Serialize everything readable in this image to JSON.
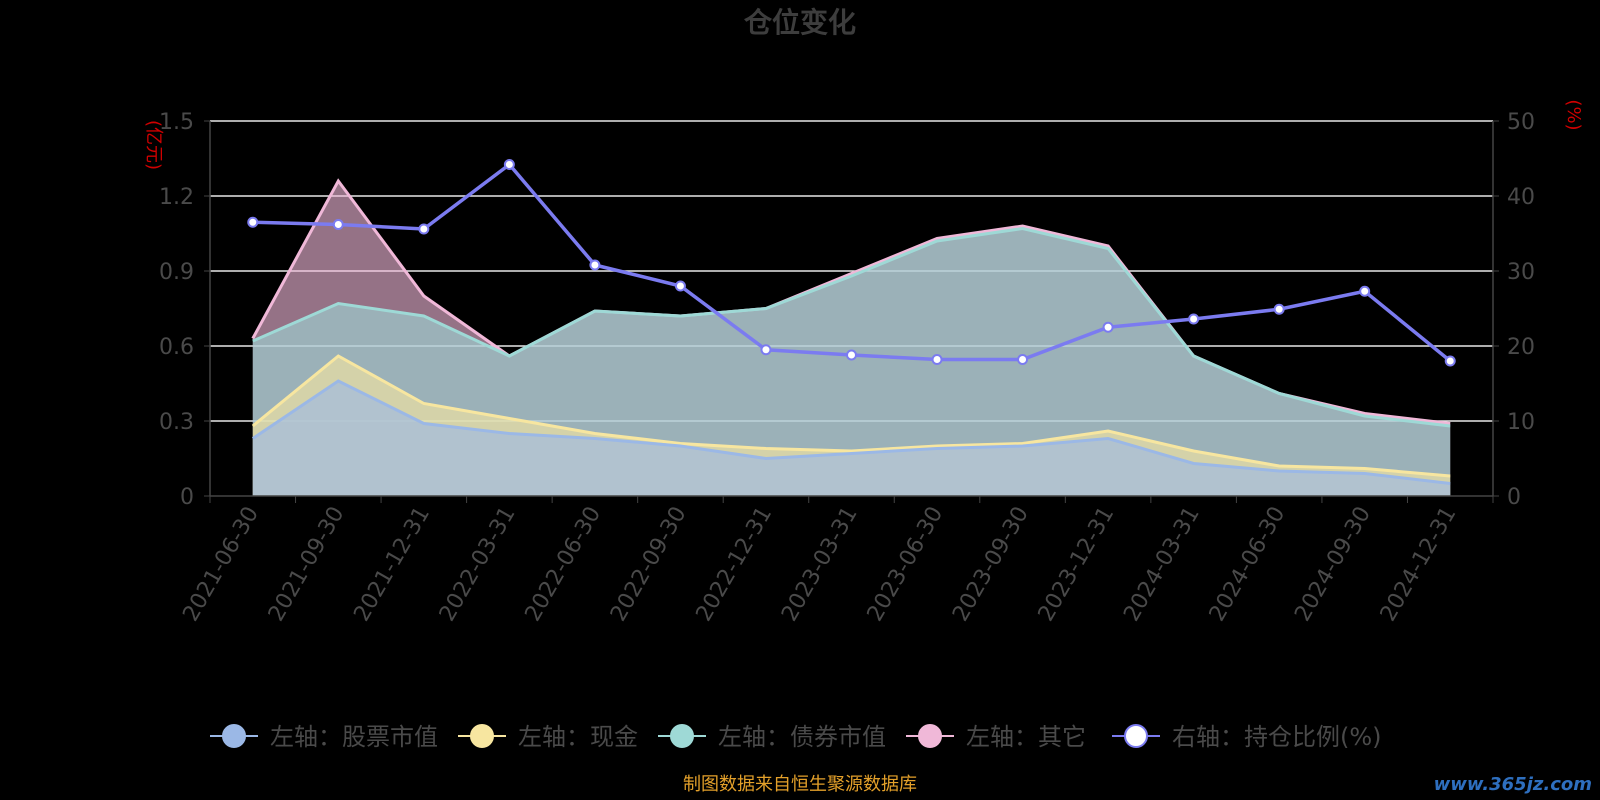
{
  "chart_data": {
    "type": "area",
    "title": "仓位变化",
    "left_axis_unit": "(亿元)",
    "right_axis_unit": "(%)",
    "left_ylim": [
      0,
      1.5
    ],
    "left_yticks": [
      "0",
      "0.3",
      "0.6",
      "0.9",
      "1.2",
      "1.5"
    ],
    "right_ylim": [
      0,
      50
    ],
    "right_yticks": [
      "0",
      "10",
      "20",
      "30",
      "40",
      "50"
    ],
    "grid": true,
    "legend_position": "bottom",
    "categories": [
      "2021-06-30",
      "2021-09-30",
      "2021-12-31",
      "2022-03-31",
      "2022-06-30",
      "2022-09-30",
      "2022-12-31",
      "2023-03-31",
      "2023-06-30",
      "2023-09-30",
      "2023-12-31",
      "2024-03-31",
      "2024-06-30",
      "2024-09-30",
      "2024-12-31"
    ],
    "stacked_series": [
      {
        "name": "左轴：股票市值",
        "axis": "left",
        "color": "#9bb8e6",
        "values": [
          0.23,
          0.46,
          0.29,
          0.25,
          0.23,
          0.2,
          0.15,
          0.17,
          0.19,
          0.2,
          0.23,
          0.13,
          0.1,
          0.09,
          0.05
        ]
      },
      {
        "name": "左轴：现金",
        "axis": "left",
        "color": "#f7e6a0",
        "values": [
          0.28,
          0.56,
          0.37,
          0.31,
          0.25,
          0.21,
          0.19,
          0.18,
          0.2,
          0.21,
          0.26,
          0.18,
          0.12,
          0.11,
          0.08
        ]
      },
      {
        "name": "左轴：债券市值",
        "axis": "left",
        "color": "#9ed9d6",
        "values": [
          0.62,
          0.77,
          0.72,
          0.56,
          0.74,
          0.72,
          0.75,
          0.88,
          1.02,
          1.07,
          0.99,
          0.56,
          0.41,
          0.32,
          0.28
        ]
      },
      {
        "name": "左轴：其它",
        "axis": "left",
        "color": "#f0b8d8",
        "values": [
          0.63,
          1.26,
          0.8,
          0.56,
          0.74,
          0.72,
          0.75,
          0.89,
          1.03,
          1.08,
          1.0,
          0.56,
          0.41,
          0.33,
          0.29
        ]
      }
    ],
    "line_series": {
      "name": "右轴：持仓比例(%)",
      "axis": "right",
      "color": "#7b7bf0",
      "values": [
        36.5,
        36.2,
        35.6,
        44.2,
        30.8,
        28.0,
        19.5,
        18.8,
        18.2,
        18.2,
        22.5,
        23.6,
        24.9,
        27.3,
        18.0
      ]
    },
    "source_note": "制图数据来自恒生聚源数据库",
    "watermark": "www.365jz.com"
  }
}
